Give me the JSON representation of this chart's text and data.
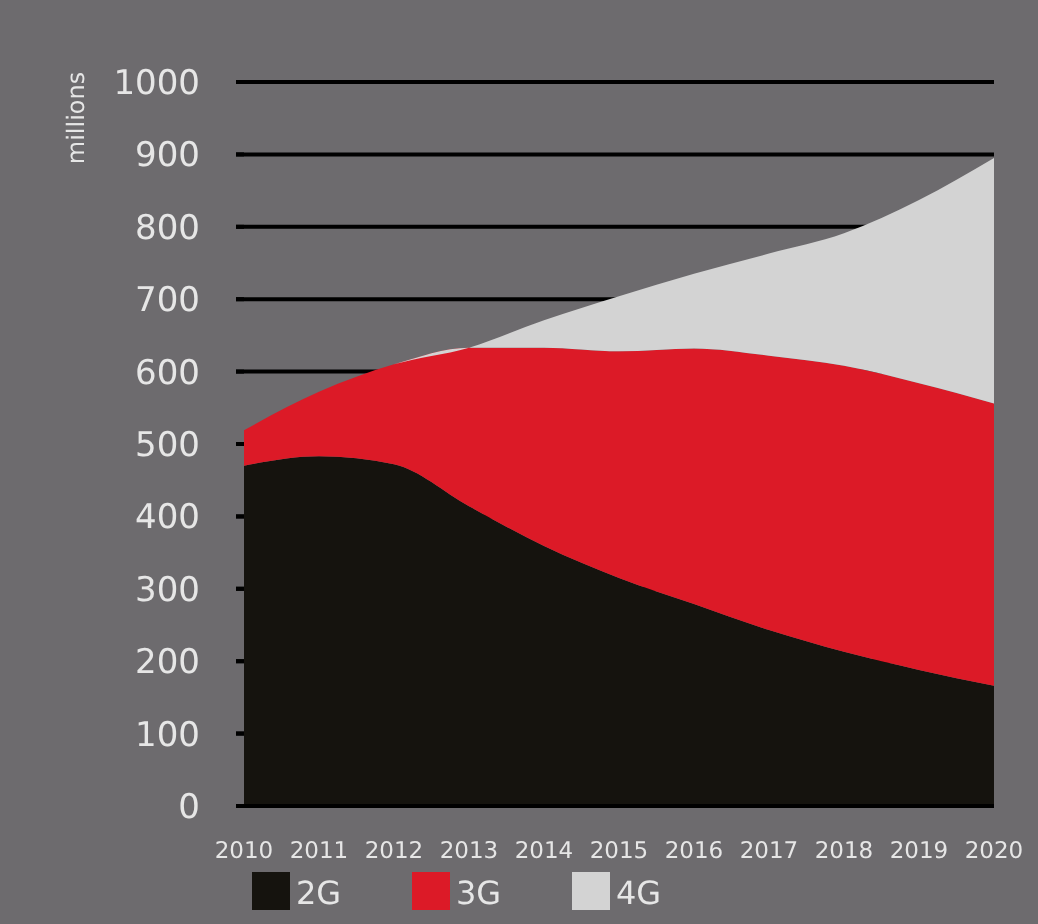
{
  "chart_data": {
    "type": "area",
    "stacked": true,
    "ylabel": "millions",
    "x": [
      2010,
      2011,
      2012,
      2013,
      2014,
      2015,
      2016,
      2017,
      2018,
      2019,
      2020
    ],
    "series": [
      {
        "name": "2G",
        "color": "#15130e",
        "values": [
          470,
          483,
          472,
          414,
          359,
          315,
          279,
          243,
          213,
          188,
          166
        ]
      },
      {
        "name": "3G",
        "color": "#dc1a27",
        "values": [
          49,
          89,
          138,
          219,
          274,
          313,
          353,
          379,
          395,
          396,
          390
        ]
      },
      {
        "name": "4G",
        "color": "#d3d3d3",
        "values": [
          0,
          0,
          0,
          0,
          38,
          76,
          103,
          141,
          183,
          253,
          339
        ]
      }
    ],
    "xlim": [
      2010,
      2020
    ],
    "xticks": [
      2010,
      2011,
      2012,
      2013,
      2014,
      2015,
      2016,
      2017,
      2018,
      2019,
      2020
    ],
    "ylim": [
      0,
      1000
    ],
    "yticks": [
      0,
      100,
      200,
      300,
      400,
      500,
      600,
      700,
      800,
      900,
      1000
    ],
    "grid": "y",
    "legend": "bottom"
  }
}
